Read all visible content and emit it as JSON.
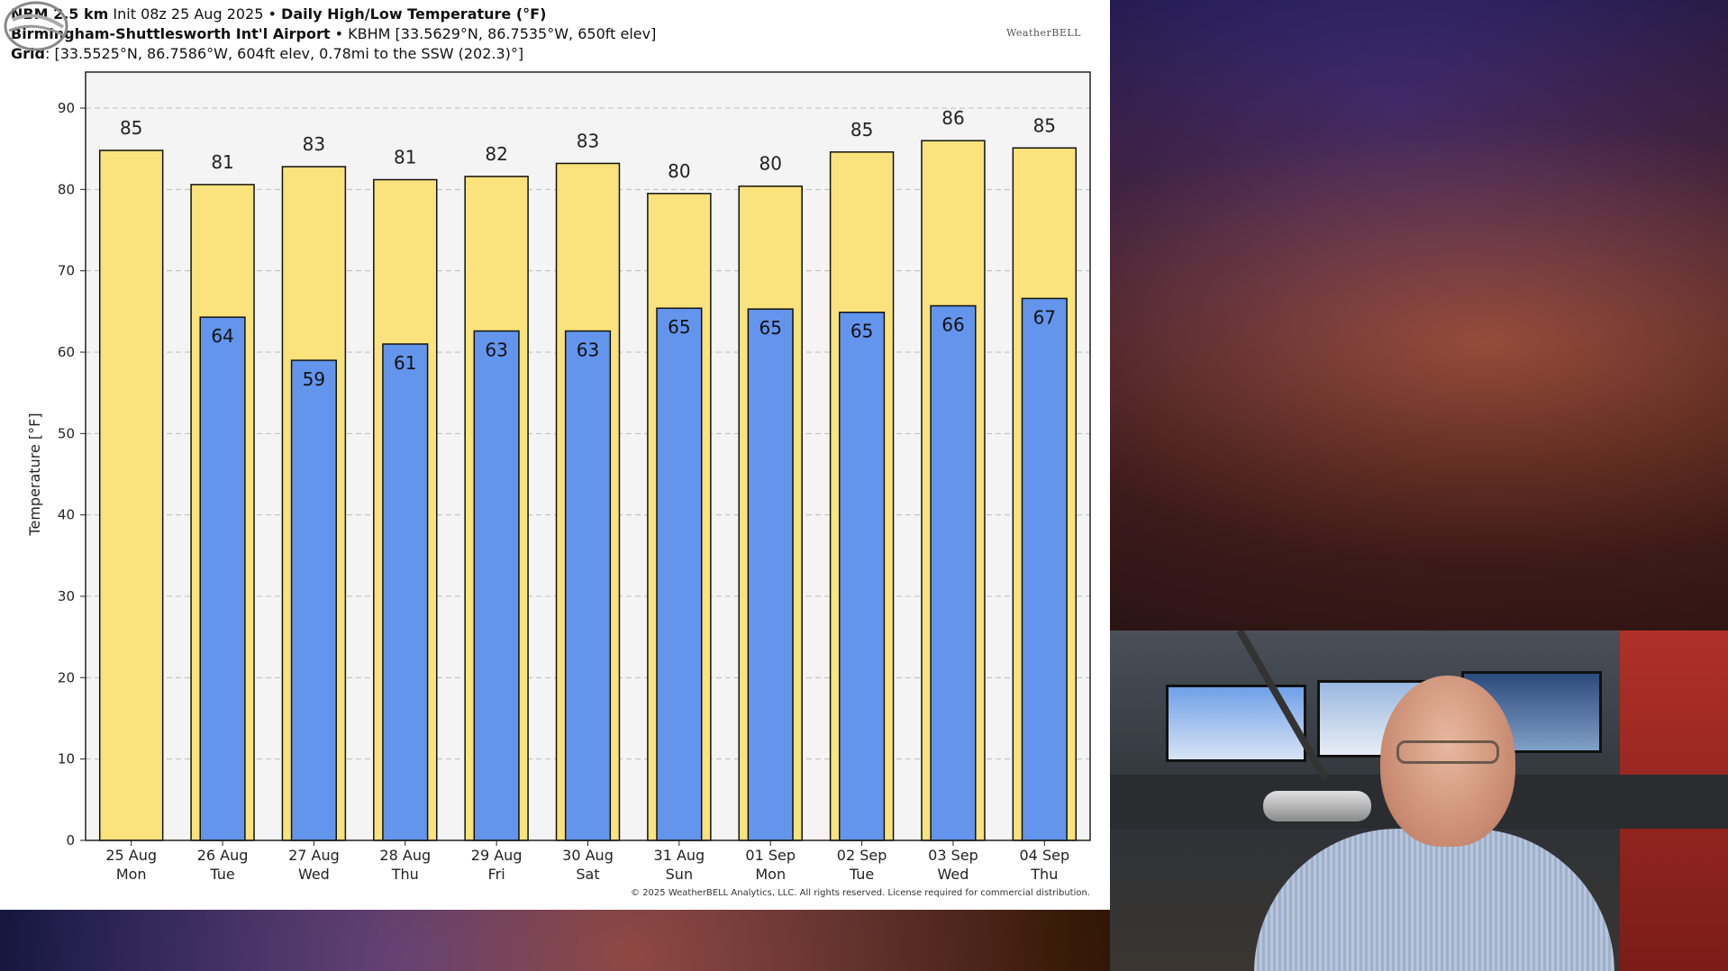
{
  "header": {
    "line1_bold1": "NBM 2.5 km",
    "line1_init": "Init 08z 25 Aug 2025",
    "line1_sep": "•",
    "line1_bold2": "Daily High/Low Temperature (°F)",
    "line2_bold": "Birmingham-Shuttlesworth Int'l Airport",
    "line2_sep": "•",
    "line2_rest": "KBHM [33.5629°N, 86.7535°W, 650ft elev]",
    "line3_bold": "Grid",
    "line3_rest": ": [33.5525°N, 86.7586°W, 604ft elev, 0.78mi to the SSW (202.3)°]"
  },
  "logo_text": "WeatherBELL",
  "copyright": "© 2025 WeatherBELL Analytics, LLC. All rights reserved. License required for commercial distribution.",
  "colors": {
    "high_bar": "#fae27c",
    "low_bar": "#6495ed",
    "plot_bg": "#f4f4f4",
    "grid": "#bbbbbb"
  },
  "chart_data": {
    "type": "bar",
    "title": "Daily High/Low Temperature (°F)",
    "xlabel": "",
    "ylabel": "Temperature [°F]",
    "ylim": [
      0,
      90
    ],
    "yticks": [
      0,
      10,
      20,
      30,
      40,
      50,
      60,
      70,
      80,
      90
    ],
    "grid": true,
    "categories": [
      [
        "25 Aug",
        "Mon"
      ],
      [
        "26 Aug",
        "Tue"
      ],
      [
        "27 Aug",
        "Wed"
      ],
      [
        "28 Aug",
        "Thu"
      ],
      [
        "29 Aug",
        "Fri"
      ],
      [
        "30 Aug",
        "Sat"
      ],
      [
        "31 Aug",
        "Sun"
      ],
      [
        "01 Sep",
        "Mon"
      ],
      [
        "02 Sep",
        "Tue"
      ],
      [
        "03 Sep",
        "Wed"
      ],
      [
        "04 Sep",
        "Thu"
      ]
    ],
    "series": [
      {
        "values": [
          84.8,
          80.6,
          82.8,
          81.2,
          81.6,
          83.2,
          79.5,
          80.4,
          84.6,
          86.0,
          85.1
        ],
        "labels": [
          "85",
          "81",
          "83",
          "81",
          "82",
          "83",
          "80",
          "80",
          "85",
          "86",
          "85"
        ]
      },
      {
        "values": [
          null,
          64.3,
          59.0,
          61.0,
          62.6,
          62.6,
          65.4,
          65.3,
          64.9,
          65.7,
          66.6
        ],
        "labels": [
          "",
          "64",
          "59",
          "61",
          "63",
          "63",
          "65",
          "65",
          "65",
          "66",
          "67"
        ]
      }
    ]
  }
}
